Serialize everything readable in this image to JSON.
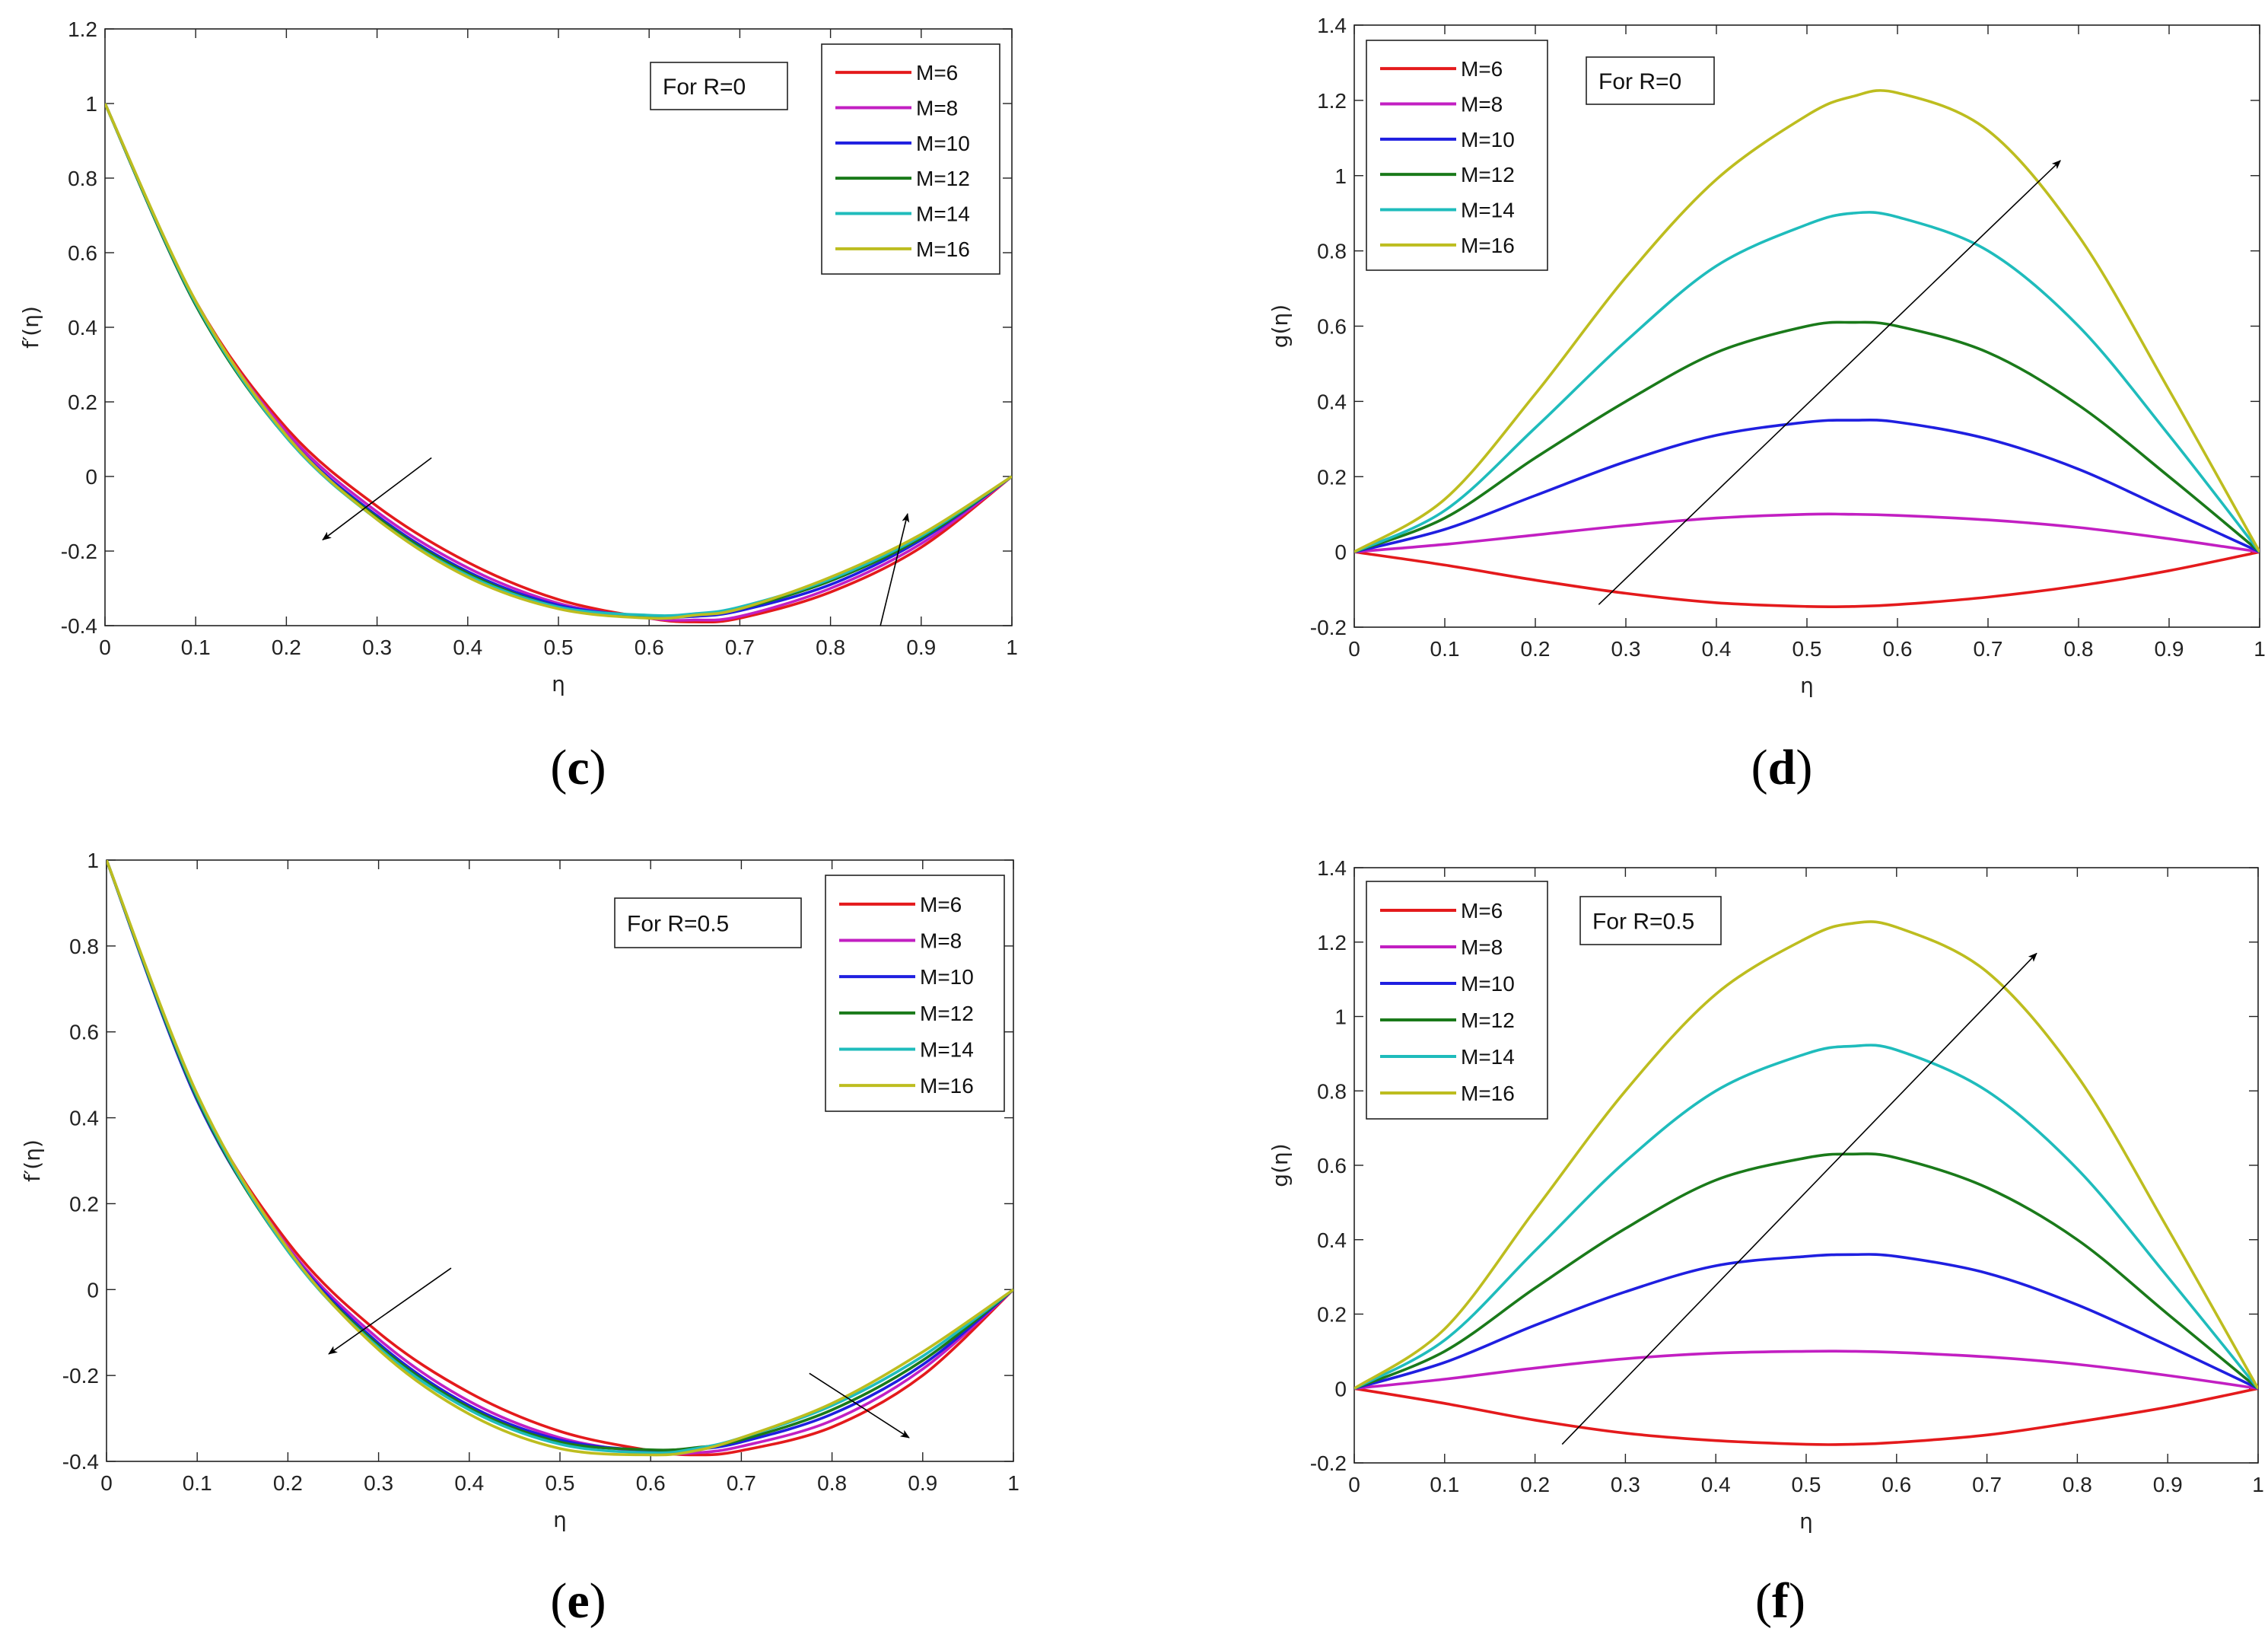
{
  "figure": {
    "colors": {
      "M=6": "#e41a1c",
      "M=8": "#c21fc2",
      "M=10": "#1f1fe0",
      "M=12": "#1a7a1a",
      "M=14": "#1fbcbc",
      "M=16": "#bdbd1f"
    }
  },
  "chart_data": [
    {
      "id": "c",
      "panel_label": "c",
      "type": "line",
      "title": "",
      "xlabel": "η",
      "ylabel": "f′(η)",
      "xlim": [
        0,
        1
      ],
      "ylim": [
        -0.4,
        1.2
      ],
      "xticks": [
        0,
        0.1,
        0.2,
        0.3,
        0.4,
        0.5,
        0.6,
        0.7,
        0.8,
        0.9,
        1
      ],
      "xtick_labels": [
        "0",
        "0.1",
        "0.2",
        "0.3",
        "0.4",
        "0.5",
        "0.6",
        "0.7",
        "0.8",
        "0.9",
        "1"
      ],
      "yticks": [
        -0.4,
        -0.2,
        0,
        0.2,
        0.4,
        0.6,
        0.8,
        1,
        1.2
      ],
      "ytick_labels": [
        "-0.4",
        "-0.2",
        "0",
        "0.2",
        "0.4",
        "0.6",
        "0.8",
        "1",
        "1.2"
      ],
      "legend_position": "top-right",
      "annotation": "For R=0",
      "arrows": [
        {
          "from": [
            0.36,
            0.05
          ],
          "to": [
            0.24,
            -0.17
          ]
        },
        {
          "from": [
            0.855,
            -0.4
          ],
          "to": [
            0.885,
            -0.1
          ]
        }
      ],
      "series": [
        {
          "name": "M=6",
          "x": [
            0,
            0.1,
            0.2,
            0.3,
            0.4,
            0.5,
            0.6,
            0.65,
            0.7,
            0.8,
            0.9,
            1
          ],
          "values": [
            1,
            0.47,
            0.13,
            -0.08,
            -0.23,
            -0.33,
            -0.38,
            -0.39,
            -0.38,
            -0.31,
            -0.19,
            0
          ]
        },
        {
          "name": "M=8",
          "x": [
            0,
            0.1,
            0.2,
            0.3,
            0.4,
            0.5,
            0.6,
            0.65,
            0.7,
            0.8,
            0.9,
            1
          ],
          "values": [
            1,
            0.465,
            0.12,
            -0.095,
            -0.245,
            -0.34,
            -0.38,
            -0.385,
            -0.375,
            -0.3,
            -0.18,
            0
          ]
        },
        {
          "name": "M=10",
          "x": [
            0,
            0.1,
            0.2,
            0.3,
            0.4,
            0.5,
            0.6,
            0.65,
            0.7,
            0.8,
            0.9,
            1
          ],
          "values": [
            1,
            0.46,
            0.11,
            -0.105,
            -0.255,
            -0.345,
            -0.375,
            -0.375,
            -0.36,
            -0.29,
            -0.17,
            0
          ]
        },
        {
          "name": "M=12",
          "x": [
            0,
            0.1,
            0.2,
            0.3,
            0.4,
            0.5,
            0.6,
            0.65,
            0.7,
            0.8,
            0.9,
            1
          ],
          "values": [
            1,
            0.46,
            0.105,
            -0.11,
            -0.26,
            -0.35,
            -0.375,
            -0.37,
            -0.355,
            -0.28,
            -0.165,
            0
          ]
        },
        {
          "name": "M=14",
          "x": [
            0,
            0.1,
            0.2,
            0.3,
            0.4,
            0.5,
            0.6,
            0.65,
            0.7,
            0.8,
            0.9,
            1
          ],
          "values": [
            1,
            0.465,
            0.105,
            -0.115,
            -0.265,
            -0.35,
            -0.372,
            -0.368,
            -0.35,
            -0.275,
            -0.16,
            0
          ]
        },
        {
          "name": "M=16",
          "x": [
            0,
            0.1,
            0.2,
            0.3,
            0.4,
            0.5,
            0.6,
            0.65,
            0.7,
            0.8,
            0.9,
            1
          ],
          "values": [
            1,
            0.47,
            0.11,
            -0.115,
            -0.27,
            -0.355,
            -0.38,
            -0.372,
            -0.355,
            -0.27,
            -0.155,
            0
          ]
        }
      ]
    },
    {
      "id": "d",
      "panel_label": "d",
      "type": "line",
      "title": "",
      "xlabel": "η",
      "ylabel": "g(η)",
      "xlim": [
        0,
        1
      ],
      "ylim": [
        -0.2,
        1.4
      ],
      "xticks": [
        0,
        0.1,
        0.2,
        0.3,
        0.4,
        0.5,
        0.6,
        0.7,
        0.8,
        0.9,
        1
      ],
      "xtick_labels": [
        "0",
        "0.1",
        "0.2",
        "0.3",
        "0.4",
        "0.5",
        "0.6",
        "0.7",
        "0.8",
        "0.9",
        "1"
      ],
      "yticks": [
        -0.2,
        0,
        0.2,
        0.4,
        0.6,
        0.8,
        1,
        1.2,
        1.4
      ],
      "ytick_labels": [
        "-0.2",
        "0",
        "0.2",
        "0.4",
        "0.6",
        "0.8",
        "1",
        "1.2",
        "1.4"
      ],
      "legend_position": "top-left",
      "annotation": "For R=0",
      "arrows": [
        {
          "from": [
            0.27,
            -0.14
          ],
          "to": [
            0.78,
            1.04
          ]
        }
      ],
      "series": [
        {
          "name": "M=6",
          "x": [
            0,
            0.1,
            0.2,
            0.3,
            0.4,
            0.5,
            0.55,
            0.6,
            0.7,
            0.8,
            0.9,
            1
          ],
          "values": [
            0,
            -0.035,
            -0.075,
            -0.11,
            -0.135,
            -0.145,
            -0.145,
            -0.14,
            -0.12,
            -0.09,
            -0.05,
            0
          ]
        },
        {
          "name": "M=8",
          "x": [
            0,
            0.1,
            0.2,
            0.3,
            0.4,
            0.5,
            0.55,
            0.6,
            0.7,
            0.8,
            0.9,
            1
          ],
          "values": [
            0,
            0.02,
            0.045,
            0.07,
            0.09,
            0.1,
            0.1,
            0.097,
            0.085,
            0.065,
            0.035,
            0
          ]
        },
        {
          "name": "M=10",
          "x": [
            0,
            0.1,
            0.2,
            0.3,
            0.4,
            0.5,
            0.55,
            0.6,
            0.7,
            0.8,
            0.9,
            1
          ],
          "values": [
            0,
            0.06,
            0.15,
            0.24,
            0.31,
            0.345,
            0.35,
            0.345,
            0.3,
            0.22,
            0.11,
            0
          ]
        },
        {
          "name": "M=12",
          "x": [
            0,
            0.1,
            0.2,
            0.3,
            0.4,
            0.5,
            0.55,
            0.6,
            0.7,
            0.8,
            0.9,
            1
          ],
          "values": [
            0,
            0.09,
            0.25,
            0.4,
            0.53,
            0.6,
            0.61,
            0.6,
            0.53,
            0.39,
            0.2,
            0
          ]
        },
        {
          "name": "M=14",
          "x": [
            0,
            0.1,
            0.2,
            0.3,
            0.4,
            0.5,
            0.55,
            0.6,
            0.7,
            0.8,
            0.9,
            1
          ],
          "values": [
            0,
            0.11,
            0.33,
            0.56,
            0.76,
            0.87,
            0.9,
            0.89,
            0.8,
            0.6,
            0.31,
            0
          ]
        },
        {
          "name": "M=16",
          "x": [
            0,
            0.1,
            0.2,
            0.3,
            0.4,
            0.5,
            0.55,
            0.6,
            0.7,
            0.8,
            0.9,
            1
          ],
          "values": [
            0,
            0.14,
            0.42,
            0.73,
            0.99,
            1.16,
            1.21,
            1.22,
            1.12,
            0.84,
            0.43,
            0
          ]
        }
      ]
    },
    {
      "id": "e",
      "panel_label": "e",
      "type": "line",
      "title": "",
      "xlabel": "η",
      "ylabel": "f′(η)",
      "xlim": [
        0,
        1
      ],
      "ylim": [
        -0.4,
        1
      ],
      "xticks": [
        0,
        0.1,
        0.2,
        0.3,
        0.4,
        0.5,
        0.6,
        0.7,
        0.8,
        0.9,
        1
      ],
      "xtick_labels": [
        "0",
        "0.1",
        "0.2",
        "0.3",
        "0.4",
        "0.5",
        "0.6",
        "0.7",
        "0.8",
        "0.9",
        "1"
      ],
      "yticks": [
        -0.4,
        -0.2,
        0,
        0.2,
        0.4,
        0.6,
        0.8,
        1
      ],
      "ytick_labels": [
        "-0.4",
        "-0.2",
        "0",
        "0.2",
        "0.4",
        "0.6",
        "0.8",
        "1"
      ],
      "legend_position": "top-right",
      "annotation": "For R=0.5",
      "arrows": [
        {
          "from": [
            0.38,
            0.05
          ],
          "to": [
            0.245,
            -0.15
          ]
        },
        {
          "from": [
            0.775,
            -0.195
          ],
          "to": [
            0.885,
            -0.345
          ]
        }
      ],
      "series": [
        {
          "name": "M=6",
          "x": [
            0,
            0.1,
            0.2,
            0.3,
            0.4,
            0.5,
            0.6,
            0.65,
            0.7,
            0.8,
            0.9,
            1
          ],
          "values": [
            1,
            0.45,
            0.11,
            -0.1,
            -0.24,
            -0.33,
            -0.375,
            -0.385,
            -0.375,
            -0.32,
            -0.2,
            0
          ]
        },
        {
          "name": "M=8",
          "x": [
            0,
            0.1,
            0.2,
            0.3,
            0.4,
            0.5,
            0.6,
            0.65,
            0.7,
            0.8,
            0.9,
            1
          ],
          "values": [
            1,
            0.445,
            0.1,
            -0.115,
            -0.26,
            -0.345,
            -0.38,
            -0.38,
            -0.365,
            -0.305,
            -0.185,
            0
          ]
        },
        {
          "name": "M=10",
          "x": [
            0,
            0.1,
            0.2,
            0.3,
            0.4,
            0.5,
            0.6,
            0.65,
            0.7,
            0.8,
            0.9,
            1
          ],
          "values": [
            1,
            0.44,
            0.095,
            -0.125,
            -0.27,
            -0.35,
            -0.375,
            -0.372,
            -0.355,
            -0.29,
            -0.175,
            0
          ]
        },
        {
          "name": "M=12",
          "x": [
            0,
            0.1,
            0.2,
            0.3,
            0.4,
            0.5,
            0.6,
            0.65,
            0.7,
            0.8,
            0.9,
            1
          ],
          "values": [
            1,
            0.445,
            0.09,
            -0.13,
            -0.275,
            -0.355,
            -0.373,
            -0.368,
            -0.35,
            -0.28,
            -0.165,
            0
          ]
        },
        {
          "name": "M=14",
          "x": [
            0,
            0.1,
            0.2,
            0.3,
            0.4,
            0.5,
            0.6,
            0.65,
            0.7,
            0.8,
            0.9,
            1
          ],
          "values": [
            1,
            0.45,
            0.09,
            -0.135,
            -0.28,
            -0.36,
            -0.38,
            -0.37,
            -0.345,
            -0.27,
            -0.155,
            0
          ]
        },
        {
          "name": "M=16",
          "x": [
            0,
            0.1,
            0.2,
            0.3,
            0.4,
            0.5,
            0.6,
            0.65,
            0.7,
            0.8,
            0.9,
            1
          ],
          "values": [
            1,
            0.455,
            0.095,
            -0.14,
            -0.29,
            -0.37,
            -0.385,
            -0.375,
            -0.345,
            -0.265,
            -0.145,
            0
          ]
        }
      ]
    },
    {
      "id": "f",
      "panel_label": "f",
      "type": "line",
      "title": "",
      "xlabel": "η",
      "ylabel": "g(η)",
      "xlim": [
        0,
        1
      ],
      "ylim": [
        -0.2,
        1.4
      ],
      "xticks": [
        0,
        0.1,
        0.2,
        0.3,
        0.4,
        0.5,
        0.6,
        0.7,
        0.8,
        0.9,
        1
      ],
      "xtick_labels": [
        "0",
        "0.1",
        "0.2",
        "0.3",
        "0.4",
        "0.5",
        "0.6",
        "0.7",
        "0.8",
        "0.9",
        "1"
      ],
      "yticks": [
        -0.2,
        0,
        0.2,
        0.4,
        0.6,
        0.8,
        1,
        1.2,
        1.4
      ],
      "ytick_labels": [
        "-0.2",
        "0",
        "0.2",
        "0.4",
        "0.6",
        "0.8",
        "1",
        "1.2",
        "1.4"
      ],
      "legend_position": "top-left",
      "annotation": "For R=0.5",
      "arrows": [
        {
          "from": [
            0.23,
            -0.15
          ],
          "to": [
            0.755,
            1.17
          ]
        }
      ],
      "series": [
        {
          "name": "M=6",
          "x": [
            0,
            0.1,
            0.2,
            0.3,
            0.4,
            0.5,
            0.55,
            0.6,
            0.7,
            0.8,
            0.9,
            1
          ],
          "values": [
            0,
            -0.04,
            -0.085,
            -0.12,
            -0.14,
            -0.15,
            -0.15,
            -0.145,
            -0.125,
            -0.09,
            -0.05,
            0
          ]
        },
        {
          "name": "M=8",
          "x": [
            0,
            0.1,
            0.2,
            0.3,
            0.4,
            0.5,
            0.55,
            0.6,
            0.7,
            0.8,
            0.9,
            1
          ],
          "values": [
            0,
            0.025,
            0.055,
            0.08,
            0.095,
            0.1,
            0.1,
            0.097,
            0.085,
            0.065,
            0.035,
            0
          ]
        },
        {
          "name": "M=10",
          "x": [
            0,
            0.1,
            0.2,
            0.3,
            0.4,
            0.5,
            0.55,
            0.6,
            0.7,
            0.8,
            0.9,
            1
          ],
          "values": [
            0,
            0.07,
            0.17,
            0.26,
            0.33,
            0.355,
            0.36,
            0.355,
            0.31,
            0.225,
            0.115,
            0
          ]
        },
        {
          "name": "M=12",
          "x": [
            0,
            0.1,
            0.2,
            0.3,
            0.4,
            0.5,
            0.55,
            0.6,
            0.7,
            0.8,
            0.9,
            1
          ],
          "values": [
            0,
            0.1,
            0.27,
            0.43,
            0.56,
            0.62,
            0.63,
            0.62,
            0.54,
            0.4,
            0.2,
            0
          ]
        },
        {
          "name": "M=14",
          "x": [
            0,
            0.1,
            0.2,
            0.3,
            0.4,
            0.5,
            0.55,
            0.6,
            0.7,
            0.8,
            0.9,
            1
          ],
          "values": [
            0,
            0.13,
            0.37,
            0.61,
            0.8,
            0.9,
            0.92,
            0.91,
            0.8,
            0.59,
            0.3,
            0
          ]
        },
        {
          "name": "M=16",
          "x": [
            0,
            0.1,
            0.2,
            0.3,
            0.4,
            0.5,
            0.55,
            0.6,
            0.7,
            0.8,
            0.9,
            1
          ],
          "values": [
            0,
            0.16,
            0.48,
            0.8,
            1.06,
            1.21,
            1.25,
            1.24,
            1.12,
            0.84,
            0.43,
            0
          ]
        }
      ]
    }
  ]
}
